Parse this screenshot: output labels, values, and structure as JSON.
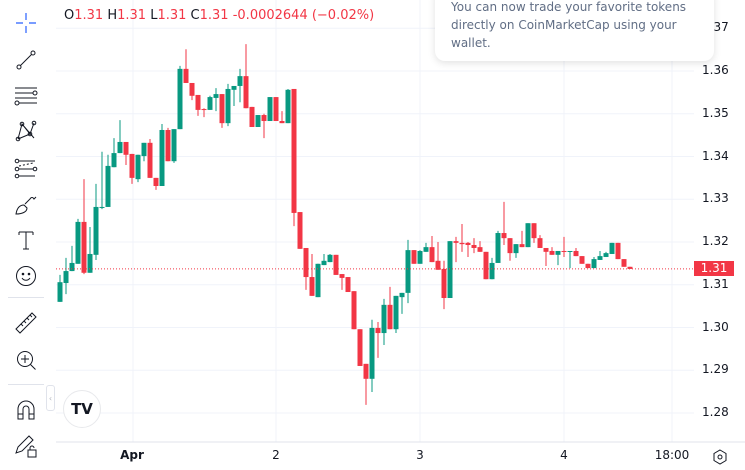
{
  "legend": {
    "o_label": "O",
    "o": "1.31",
    "h_label": "H",
    "h": "1.31",
    "l_label": "L",
    "l": "1.31",
    "c_label": "C",
    "c": "1.31",
    "change": "-0.0002644 (−0.02%)"
  },
  "popup": {
    "text": "You can now trade your favorite tokens directly on CoinMarketCap using your wallet."
  },
  "toolbar": {
    "items": [
      "crosshair-icon",
      "trend-line-icon",
      "horizontal-lines-icon",
      "pattern-icon",
      "fib-icon",
      "brush-icon",
      "text-icon",
      "emoji-icon",
      "ruler-icon",
      "zoom-in-icon",
      "magnet-icon",
      "lock-drawings-icon"
    ]
  },
  "colors": {
    "up": "#089981",
    "down": "#f23645",
    "grid": "#f0f3fa"
  },
  "chart_data": {
    "type": "candlestick",
    "price_axis": {
      "ticks": [
        "1.37",
        "1.36",
        "1.35",
        "1.34",
        "1.33",
        "1.32",
        "1.31",
        "1.30",
        "1.29",
        "1.28"
      ],
      "range": [
        1.2775,
        1.3765
      ]
    },
    "time_axis": {
      "ticks": [
        "Apr",
        "2",
        "3",
        "4",
        "18:00"
      ]
    },
    "current_price": {
      "value": 1.3137,
      "label": "1.31"
    },
    "grid": true,
    "ohlc": [
      [
        1.306,
        1.3123,
        1.306,
        1.3106
      ],
      [
        1.3104,
        1.3163,
        1.3078,
        1.3132
      ],
      [
        1.3132,
        1.3191,
        1.3132,
        1.3151
      ],
      [
        1.3149,
        1.3254,
        1.3149,
        1.3247
      ],
      [
        1.3247,
        1.3347,
        1.3125,
        1.3128
      ],
      [
        1.3128,
        1.3235,
        1.3128,
        1.3172
      ],
      [
        1.317,
        1.3336,
        1.3158,
        1.3282
      ],
      [
        1.328,
        1.3411,
        1.3277,
        1.3282
      ],
      [
        1.3282,
        1.3404,
        1.3282,
        1.3378
      ],
      [
        1.3375,
        1.3443,
        1.3375,
        1.3408
      ],
      [
        1.3408,
        1.3485,
        1.3408,
        1.3434
      ],
      [
        1.3434,
        1.3434,
        1.338,
        1.3404
      ],
      [
        1.3406,
        1.3406,
        1.3336,
        1.335
      ],
      [
        1.3347,
        1.3404,
        1.334,
        1.3404
      ],
      [
        1.3401,
        1.3432,
        1.3389,
        1.3432
      ],
      [
        1.3432,
        1.3441,
        1.335,
        1.335
      ],
      [
        1.335,
        1.335,
        1.3322,
        1.3331
      ],
      [
        1.3331,
        1.3476,
        1.3331,
        1.3462
      ],
      [
        1.3462,
        1.3467,
        1.3389,
        1.3389
      ],
      [
        1.3389,
        1.3464,
        1.3385,
        1.3464
      ],
      [
        1.3464,
        1.3612,
        1.3464,
        1.3605
      ],
      [
        1.3605,
        1.3651,
        1.3572,
        1.3572
      ],
      [
        1.3572,
        1.3572,
        1.3532,
        1.3542
      ],
      [
        1.3544,
        1.3544,
        1.3495,
        1.3509
      ],
      [
        1.3511,
        1.3513,
        1.3492,
        1.3509
      ],
      [
        1.3509,
        1.3542,
        1.3509,
        1.3539
      ],
      [
        1.3537,
        1.356,
        1.3506,
        1.3546
      ],
      [
        1.3546,
        1.3546,
        1.3467,
        1.3478
      ],
      [
        1.3478,
        1.357,
        1.3471,
        1.3558
      ],
      [
        1.3556,
        1.3565,
        1.3518,
        1.3565
      ],
      [
        1.3565,
        1.3605,
        1.3527,
        1.3588
      ],
      [
        1.3588,
        1.3663,
        1.3513,
        1.3513
      ],
      [
        1.3516,
        1.3516,
        1.3469,
        1.3469
      ],
      [
        1.3469,
        1.3497,
        1.3469,
        1.3497
      ],
      [
        1.3497,
        1.35,
        1.3443,
        1.3483
      ],
      [
        1.3483,
        1.3539,
        1.3483,
        1.3539
      ],
      [
        1.3539,
        1.3539,
        1.3483,
        1.3483
      ],
      [
        1.3483,
        1.3506,
        1.3478,
        1.3478
      ],
      [
        1.3478,
        1.3558,
        1.3478,
        1.3556
      ],
      [
        1.3558,
        1.3558,
        1.3237,
        1.3268
      ],
      [
        1.327,
        1.327,
        1.3184,
        1.3184
      ],
      [
        1.3186,
        1.3186,
        1.3088,
        1.3118
      ],
      [
        1.3118,
        1.3172,
        1.3074,
        1.3074
      ],
      [
        1.3071,
        1.3149,
        1.3071,
        1.3149
      ],
      [
        1.3146,
        1.3172,
        1.3146,
        1.3156
      ],
      [
        1.3153,
        1.3172,
        1.3153,
        1.317
      ],
      [
        1.317,
        1.317,
        1.3123,
        1.3123
      ],
      [
        1.3125,
        1.3125,
        1.3088,
        1.3116
      ],
      [
        1.3118,
        1.3118,
        1.3083,
        1.3083
      ],
      [
        1.3085,
        1.3085,
        1.2996,
        1.2996
      ],
      [
        1.2996,
        1.2996,
        1.291,
        1.291
      ],
      [
        1.2915,
        1.2915,
        1.2819,
        1.288
      ],
      [
        1.288,
        1.3018,
        1.2849,
        1.2999
      ],
      [
        1.2999,
        1.3013,
        1.2929,
        1.2987
      ],
      [
        1.2987,
        1.3067,
        1.2959,
        1.3053
      ],
      [
        1.3053,
        1.3095,
        1.2996,
        1.2996
      ],
      [
        1.2996,
        1.3074,
        1.2987,
        1.3074
      ],
      [
        1.3071,
        1.3081,
        1.3032,
        1.3081
      ],
      [
        1.3081,
        1.3205,
        1.3057,
        1.3181
      ],
      [
        1.3181,
        1.3181,
        1.3149,
        1.3149
      ],
      [
        1.3149,
        1.3181,
        1.3149,
        1.3179
      ],
      [
        1.3177,
        1.3198,
        1.3177,
        1.3188
      ],
      [
        1.3188,
        1.3214,
        1.3153,
        1.3153
      ],
      [
        1.3156,
        1.32,
        1.3135,
        1.3135
      ],
      [
        1.3137,
        1.3156,
        1.3043,
        1.3069
      ],
      [
        1.3069,
        1.3202,
        1.3069,
        1.3202
      ],
      [
        1.3202,
        1.3212,
        1.3153,
        1.3198
      ],
      [
        1.3198,
        1.3242,
        1.3177,
        1.3195
      ],
      [
        1.3198,
        1.32,
        1.3165,
        1.3193
      ],
      [
        1.3193,
        1.3209,
        1.3174,
        1.3186
      ],
      [
        1.3188,
        1.3202,
        1.3177,
        1.3177
      ],
      [
        1.3177,
        1.3177,
        1.3113,
        1.3113
      ],
      [
        1.3113,
        1.3163,
        1.3113,
        1.3151
      ],
      [
        1.3151,
        1.3226,
        1.3151,
        1.3221
      ],
      [
        1.3221,
        1.3294,
        1.3193,
        1.3209
      ],
      [
        1.3209,
        1.3209,
        1.3156,
        1.3174
      ],
      [
        1.3174,
        1.3195,
        1.3163,
        1.3195
      ],
      [
        1.3195,
        1.3226,
        1.3188,
        1.3188
      ],
      [
        1.3188,
        1.3244,
        1.3188,
        1.3244
      ],
      [
        1.3244,
        1.3244,
        1.3198,
        1.3209
      ],
      [
        1.3209,
        1.3216,
        1.3186,
        1.3186
      ],
      [
        1.3186,
        1.3186,
        1.3144,
        1.3177
      ],
      [
        1.3179,
        1.3188,
        1.317,
        1.317
      ],
      [
        1.317,
        1.3179,
        1.3146,
        1.3179
      ],
      [
        1.3179,
        1.3212,
        1.3165,
        1.3177
      ],
      [
        1.3177,
        1.3179,
        1.3139,
        1.3179
      ],
      [
        1.3179,
        1.3186,
        1.3167,
        1.3167
      ],
      [
        1.3167,
        1.3167,
        1.3149,
        1.3149
      ],
      [
        1.3149,
        1.3149,
        1.3139,
        1.3139
      ],
      [
        1.3139,
        1.3165,
        1.3139,
        1.316
      ],
      [
        1.3158,
        1.3179,
        1.3158,
        1.3167
      ],
      [
        1.3165,
        1.3177,
        1.3165,
        1.3174
      ],
      [
        1.3172,
        1.3198,
        1.3172,
        1.3198
      ],
      [
        1.3198,
        1.3198,
        1.316,
        1.316
      ],
      [
        1.316,
        1.316,
        1.3142,
        1.3142
      ],
      [
        1.3142,
        1.3142,
        1.3137,
        1.3137
      ]
    ]
  }
}
